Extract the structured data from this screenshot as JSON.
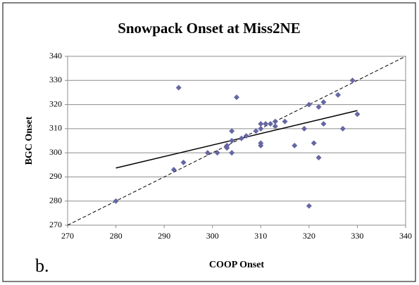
{
  "chart_data": {
    "type": "scatter",
    "title": "Snowpack Onset at Miss2NE",
    "x_label": "COOP Onset",
    "y_label": "BGC Onset",
    "panel_label": "b.",
    "x": [
      280,
      292,
      294,
      293,
      299,
      301,
      303,
      303,
      304,
      304,
      304,
      305,
      306,
      307,
      309,
      310,
      310,
      310,
      310,
      311,
      312,
      313,
      313,
      315,
      317,
      319,
      320,
      320,
      321,
      322,
      322,
      323,
      323,
      326,
      327,
      329,
      330
    ],
    "values": [
      280,
      293,
      296,
      327,
      300,
      300,
      302,
      303,
      305,
      309,
      300,
      323,
      306,
      307,
      309,
      310,
      312,
      303,
      304,
      312,
      312,
      311,
      313,
      313,
      303,
      310,
      320,
      278,
      304,
      319,
      298,
      321,
      312,
      324,
      310,
      330,
      316
    ],
    "color": "#6666a3",
    "trendline": {
      "x": [
        280,
        330
      ],
      "y": [
        293.7,
        317.5
      ]
    },
    "reference_line": {
      "x": [
        270,
        340
      ],
      "y": [
        270,
        340
      ]
    },
    "xlim": [
      270,
      340
    ],
    "ylim": [
      270,
      340
    ],
    "xticks": [
      270,
      280,
      290,
      300,
      310,
      320,
      330,
      340
    ],
    "yticks": [
      270,
      280,
      290,
      300,
      310,
      320,
      330,
      340
    ],
    "grid": true
  }
}
